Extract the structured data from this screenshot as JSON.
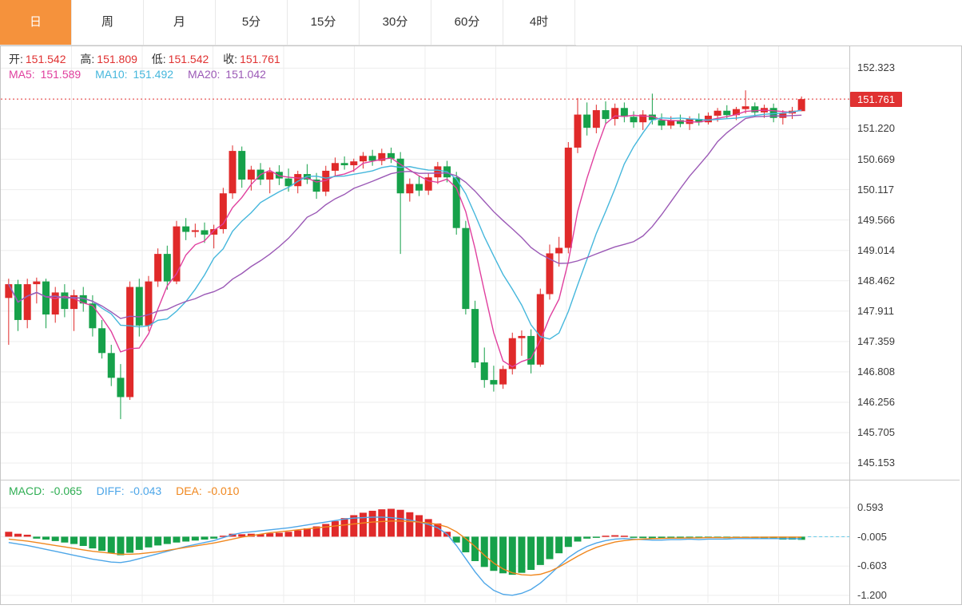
{
  "toolbar": {
    "tabs": [
      {
        "label": "日",
        "active": true
      },
      {
        "label": "周",
        "active": false
      },
      {
        "label": "月",
        "active": false
      },
      {
        "label": "5分",
        "active": false
      },
      {
        "label": "15分",
        "active": false
      },
      {
        "label": "30分",
        "active": false
      },
      {
        "label": "60分",
        "active": false
      },
      {
        "label": "4时",
        "active": false
      }
    ]
  },
  "legend": {
    "ohlc": {
      "open_label": "开:",
      "open": "151.542",
      "high_label": "高:",
      "high": "151.809",
      "low_label": "低:",
      "low": "151.542",
      "close_label": "收:",
      "close": "151.761"
    },
    "ma": {
      "ma5_label": "MA5: ",
      "ma5": "151.589",
      "ma10_label": "MA10: ",
      "ma10": "151.492",
      "ma20_label": "MA20: ",
      "ma20": "151.042"
    }
  },
  "macd_legend": {
    "macd_label": "MACD: ",
    "macd": "-0.065",
    "diff_label": "DIFF: ",
    "diff": "-0.043",
    "dea_label": "DEA: ",
    "dea": "-0.010"
  },
  "price_badge": "151.761",
  "axes": {
    "price_labels": [
      "152.323",
      "151.220",
      "150.669",
      "150.117",
      "149.566",
      "149.014",
      "148.462",
      "147.911",
      "147.359",
      "146.808",
      "146.256",
      "145.705",
      "145.153"
    ],
    "macd_labels": [
      "0.593",
      "-0.005",
      "-0.603",
      "-1.200"
    ]
  },
  "colors": {
    "up": "#e02a2a",
    "down": "#16a14a",
    "ma5": "#e03f9e",
    "ma10": "#45b7dc",
    "ma20": "#9b59b6",
    "diff_line": "#4da6e8",
    "dea_line": "#f0871e",
    "badge_bg": "#e03131",
    "active_tab_bg": "#f5923c",
    "grid": "#ededed",
    "dotted_price_line": "#e03131",
    "zero_dash": "#5fc8e8"
  },
  "chart_data": {
    "type": "candlestick",
    "title": "Daily candlestick chart with MA5/MA10/MA20 and MACD",
    "last_price": 151.761,
    "price_range": [
      144.85,
      152.72
    ],
    "macd_range": [
      -1.35,
      1.15
    ],
    "ma_periods": [
      5,
      10,
      20
    ],
    "candles": [
      [
        148.15,
        148.5,
        147.3,
        148.4
      ],
      [
        148.4,
        148.48,
        147.55,
        147.75
      ],
      [
        147.75,
        148.5,
        147.6,
        148.4
      ],
      [
        148.4,
        148.52,
        148.05,
        148.45
      ],
      [
        148.45,
        148.5,
        147.6,
        147.85
      ],
      [
        147.85,
        148.35,
        147.7,
        148.25
      ],
      [
        148.25,
        148.4,
        147.8,
        147.95
      ],
      [
        147.95,
        148.3,
        147.55,
        148.2
      ],
      [
        148.2,
        148.35,
        147.9,
        148.05
      ],
      [
        148.05,
        148.2,
        147.45,
        147.6
      ],
      [
        147.6,
        147.75,
        147.05,
        147.15
      ],
      [
        147.15,
        147.3,
        146.55,
        146.7
      ],
      [
        146.7,
        146.95,
        145.95,
        146.35
      ],
      [
        146.35,
        148.45,
        146.3,
        148.35
      ],
      [
        148.35,
        148.5,
        147.45,
        147.65
      ],
      [
        147.65,
        148.55,
        147.55,
        148.45
      ],
      [
        148.45,
        149.05,
        148.35,
        148.95
      ],
      [
        148.95,
        149.1,
        148.3,
        148.45
      ],
      [
        148.45,
        149.55,
        148.4,
        149.45
      ],
      [
        149.45,
        149.6,
        149.2,
        149.35
      ],
      [
        149.35,
        149.5,
        149.25,
        149.38
      ],
      [
        149.38,
        149.52,
        149.15,
        149.3
      ],
      [
        149.3,
        149.48,
        149.05,
        149.4
      ],
      [
        149.4,
        150.15,
        149.32,
        150.05
      ],
      [
        150.05,
        150.92,
        149.95,
        150.82
      ],
      [
        150.82,
        150.9,
        150.15,
        150.3
      ],
      [
        150.3,
        150.55,
        150.1,
        150.48
      ],
      [
        150.48,
        150.6,
        150.2,
        150.3
      ],
      [
        150.3,
        150.52,
        150.05,
        150.44
      ],
      [
        150.44,
        150.56,
        150.2,
        150.32
      ],
      [
        150.32,
        150.5,
        150.08,
        150.18
      ],
      [
        150.18,
        150.46,
        150.05,
        150.4
      ],
      [
        150.4,
        150.58,
        150.22,
        150.3
      ],
      [
        150.3,
        150.42,
        149.95,
        150.08
      ],
      [
        150.08,
        150.55,
        150.0,
        150.46
      ],
      [
        150.46,
        150.7,
        150.35,
        150.6
      ],
      [
        150.6,
        150.72,
        150.48,
        150.56
      ],
      [
        150.56,
        150.68,
        150.44,
        150.63
      ],
      [
        150.63,
        150.8,
        150.5,
        150.73
      ],
      [
        150.73,
        150.84,
        150.55,
        150.64
      ],
      [
        150.64,
        150.86,
        150.56,
        150.78
      ],
      [
        150.78,
        150.88,
        150.6,
        150.68
      ],
      [
        150.68,
        150.8,
        148.95,
        150.05
      ],
      [
        150.05,
        150.32,
        149.9,
        150.22
      ],
      [
        150.22,
        150.36,
        150.0,
        150.1
      ],
      [
        150.1,
        150.42,
        150.02,
        150.34
      ],
      [
        150.34,
        150.62,
        150.22,
        150.54
      ],
      [
        150.54,
        150.64,
        150.25,
        150.34
      ],
      [
        150.34,
        150.44,
        149.3,
        149.42
      ],
      [
        149.42,
        149.55,
        147.85,
        147.95
      ],
      [
        147.95,
        148.1,
        146.88,
        146.98
      ],
      [
        146.98,
        147.25,
        146.52,
        146.66
      ],
      [
        146.66,
        146.92,
        146.45,
        146.58
      ],
      [
        146.58,
        146.92,
        146.5,
        146.86
      ],
      [
        146.86,
        147.52,
        146.76,
        147.42
      ],
      [
        147.42,
        147.56,
        147.1,
        147.46
      ],
      [
        147.46,
        147.58,
        146.78,
        146.94
      ],
      [
        146.94,
        148.32,
        146.9,
        148.22
      ],
      [
        148.22,
        149.12,
        148.12,
        148.96
      ],
      [
        148.96,
        149.26,
        148.72,
        149.06
      ],
      [
        149.06,
        150.98,
        148.96,
        150.88
      ],
      [
        150.88,
        151.78,
        150.78,
        151.48
      ],
      [
        151.48,
        151.7,
        151.1,
        151.24
      ],
      [
        151.24,
        151.66,
        151.14,
        151.56
      ],
      [
        151.56,
        151.72,
        151.3,
        151.4
      ],
      [
        151.4,
        151.68,
        151.28,
        151.6
      ],
      [
        151.6,
        151.7,
        151.34,
        151.44
      ],
      [
        151.44,
        151.54,
        151.24,
        151.34
      ],
      [
        151.34,
        151.56,
        151.2,
        151.48
      ],
      [
        151.48,
        151.86,
        151.3,
        151.38
      ],
      [
        151.38,
        151.5,
        151.2,
        151.28
      ],
      [
        151.28,
        151.45,
        151.22,
        151.38
      ],
      [
        151.38,
        151.48,
        151.25,
        151.31
      ],
      [
        151.31,
        151.45,
        151.2,
        151.4
      ],
      [
        151.4,
        151.5,
        151.28,
        151.34
      ],
      [
        151.34,
        151.52,
        151.3,
        151.46
      ],
      [
        151.46,
        151.6,
        151.35,
        151.55
      ],
      [
        151.55,
        151.65,
        151.4,
        151.47
      ],
      [
        151.47,
        151.62,
        151.38,
        151.58
      ],
      [
        151.58,
        151.92,
        151.5,
        151.63
      ],
      [
        151.63,
        151.7,
        151.45,
        151.52
      ],
      [
        151.52,
        151.66,
        151.42,
        151.6
      ],
      [
        151.6,
        151.68,
        151.34,
        151.42
      ],
      [
        151.42,
        151.56,
        151.3,
        151.5
      ],
      [
        151.5,
        151.62,
        151.4,
        151.55
      ],
      [
        151.542,
        151.809,
        151.542,
        151.761
      ]
    ],
    "macd": {
      "hist": [
        0.1,
        0.06,
        0.04,
        -0.04,
        -0.06,
        -0.09,
        -0.12,
        -0.15,
        -0.19,
        -0.24,
        -0.29,
        -0.34,
        -0.38,
        -0.33,
        -0.27,
        -0.22,
        -0.18,
        -0.15,
        -0.12,
        -0.1,
        -0.08,
        -0.06,
        -0.04,
        0.02,
        0.06,
        0.05,
        0.06,
        0.05,
        0.07,
        0.08,
        0.1,
        0.13,
        0.17,
        0.21,
        0.26,
        0.32,
        0.38,
        0.44,
        0.49,
        0.53,
        0.56,
        0.57,
        0.55,
        0.5,
        0.44,
        0.36,
        0.27,
        0.1,
        -0.12,
        -0.32,
        -0.5,
        -0.62,
        -0.7,
        -0.75,
        -0.78,
        -0.74,
        -0.68,
        -0.58,
        -0.46,
        -0.34,
        -0.21,
        -0.1,
        -0.04,
        -0.02,
        0.02,
        0.03,
        0.02,
        -0.02,
        -0.03,
        -0.04,
        -0.03,
        -0.02,
        -0.03,
        -0.02,
        -0.03,
        -0.02,
        -0.02,
        -0.03,
        -0.02,
        -0.02,
        -0.03,
        -0.04,
        -0.05,
        -0.06,
        -0.06,
        -0.065
      ],
      "diff": [
        -0.12,
        -0.15,
        -0.18,
        -0.22,
        -0.26,
        -0.3,
        -0.34,
        -0.38,
        -0.42,
        -0.46,
        -0.49,
        -0.52,
        -0.53,
        -0.5,
        -0.45,
        -0.4,
        -0.35,
        -0.3,
        -0.25,
        -0.2,
        -0.16,
        -0.12,
        -0.08,
        -0.02,
        0.04,
        0.08,
        0.1,
        0.12,
        0.14,
        0.16,
        0.18,
        0.21,
        0.24,
        0.27,
        0.3,
        0.33,
        0.36,
        0.38,
        0.39,
        0.4,
        0.4,
        0.39,
        0.37,
        0.34,
        0.3,
        0.25,
        0.18,
        0.05,
        -0.18,
        -0.45,
        -0.72,
        -0.95,
        -1.1,
        -1.18,
        -1.2,
        -1.16,
        -1.08,
        -0.95,
        -0.78,
        -0.6,
        -0.43,
        -0.3,
        -0.2,
        -0.13,
        -0.08,
        -0.05,
        -0.04,
        -0.05,
        -0.06,
        -0.07,
        -0.07,
        -0.06,
        -0.06,
        -0.05,
        -0.06,
        -0.05,
        -0.05,
        -0.05,
        -0.04,
        -0.04,
        -0.04,
        -0.04,
        -0.04,
        -0.04,
        -0.04,
        -0.043
      ],
      "dea": [
        -0.05,
        -0.07,
        -0.09,
        -0.12,
        -0.15,
        -0.18,
        -0.21,
        -0.24,
        -0.27,
        -0.3,
        -0.32,
        -0.34,
        -0.36,
        -0.36,
        -0.35,
        -0.33,
        -0.31,
        -0.28,
        -0.25,
        -0.22,
        -0.19,
        -0.16,
        -0.13,
        -0.09,
        -0.05,
        -0.01,
        0.02,
        0.05,
        0.08,
        0.1,
        0.12,
        0.14,
        0.16,
        0.18,
        0.2,
        0.22,
        0.24,
        0.26,
        0.28,
        0.3,
        0.31,
        0.32,
        0.32,
        0.31,
        0.3,
        0.28,
        0.25,
        0.2,
        0.1,
        -0.04,
        -0.2,
        -0.38,
        -0.54,
        -0.66,
        -0.74,
        -0.78,
        -0.79,
        -0.77,
        -0.71,
        -0.62,
        -0.51,
        -0.4,
        -0.3,
        -0.22,
        -0.16,
        -0.11,
        -0.08,
        -0.06,
        -0.05,
        -0.04,
        -0.035,
        -0.03,
        -0.03,
        -0.025,
        -0.025,
        -0.02,
        -0.02,
        -0.02,
        -0.015,
        -0.015,
        -0.012,
        -0.012,
        -0.01,
        -0.01,
        -0.01,
        -0.01
      ]
    }
  }
}
